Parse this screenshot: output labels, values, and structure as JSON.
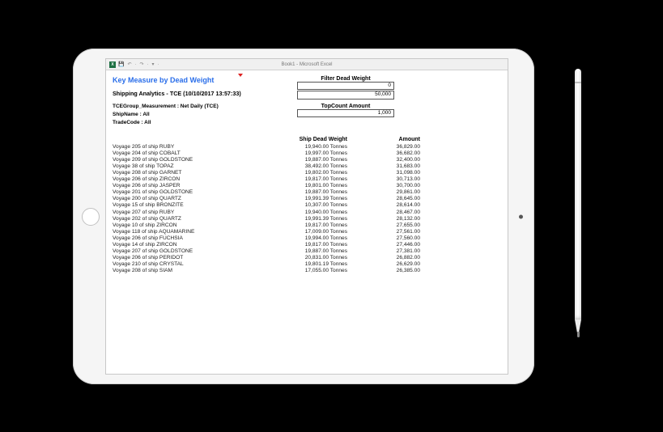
{
  "window": {
    "title": "Book1 - Microsoft Excel",
    "excel_glyph": "X"
  },
  "qat": {
    "save": "💾",
    "undo": "↶",
    "redo": "↷",
    "more": "▾"
  },
  "report": {
    "heading": "Key Measure by Dead Weight",
    "subtitle": "Shipping Analytics - TCE (10/10/2017 13:57:33)",
    "meta": {
      "measurement": "TCEGroup_Measurement : Net Daily (TCE)",
      "shipname": "ShipName : All",
      "tradecode": "TradeCode : All"
    }
  },
  "filters": {
    "dead_label": "Filter Dead Weight",
    "dead_min": "0",
    "dead_max": "50,000",
    "topcount_label": "TopCount Amount",
    "topcount_val": "1,000"
  },
  "columns": {
    "voyage": "",
    "dead": "Ship Dead Weight",
    "amount": "Amount"
  },
  "rows": [
    {
      "voyage": "Voyage 205 of ship RUBY",
      "dead": "19,940.00 Tonnes",
      "amount": "36,829.00"
    },
    {
      "voyage": "Voyage 204 of ship COBALT",
      "dead": "19,997.00 Tonnes",
      "amount": "36,682.00"
    },
    {
      "voyage": "Voyage 209 of ship GOLDSTONE",
      "dead": "19,887.00 Tonnes",
      "amount": "32,400.00"
    },
    {
      "voyage": "Voyage 38 of ship TOPAZ",
      "dead": "38,492.00 Tonnes",
      "amount": "31,683.00"
    },
    {
      "voyage": "Voyage 208 of ship GARNET",
      "dead": "19,802.00 Tonnes",
      "amount": "31,098.00"
    },
    {
      "voyage": "Voyage 206 of ship ZIRCON",
      "dead": "19,817.00 Tonnes",
      "amount": "30,713.00"
    },
    {
      "voyage": "Voyage 206 of ship JASPER",
      "dead": "19,801.00 Tonnes",
      "amount": "30,700.00"
    },
    {
      "voyage": "Voyage 201 of ship GOLDSTONE",
      "dead": "19,887.00 Tonnes",
      "amount": "29,861.00"
    },
    {
      "voyage": "Voyage 200 of ship QUARTZ",
      "dead": "19,991.39 Tonnes",
      "amount": "28,645.00"
    },
    {
      "voyage": "Voyage 15 of ship BRONZITE",
      "dead": "10,307.00 Tonnes",
      "amount": "28,614.00"
    },
    {
      "voyage": "Voyage 207 of ship RUBY",
      "dead": "19,940.00 Tonnes",
      "amount": "28,467.00"
    },
    {
      "voyage": "Voyage 202 of ship QUARTZ",
      "dead": "19,991.39 Tonnes",
      "amount": "28,132.00"
    },
    {
      "voyage": "Voyage 10 of ship ZIRCON",
      "dead": "19,817.00 Tonnes",
      "amount": "27,655.00"
    },
    {
      "voyage": "Voyage 118 of ship AQUAMARINE",
      "dead": "17,009.00 Tonnes",
      "amount": "27,561.00"
    },
    {
      "voyage": "Voyage 206 of ship FUCHSIA",
      "dead": "19,994.00 Tonnes",
      "amount": "27,560.00"
    },
    {
      "voyage": "Voyage 14 of ship ZIRCON",
      "dead": "19,817.00 Tonnes",
      "amount": "27,446.00"
    },
    {
      "voyage": "Voyage 207 of ship GOLDSTONE",
      "dead": "19,887.00 Tonnes",
      "amount": "27,381.00"
    },
    {
      "voyage": "Voyage 206 of ship PERIDOT",
      "dead": "20,831.00 Tonnes",
      "amount": "26,882.00"
    },
    {
      "voyage": "Voyage 210 of ship CRYSTAL",
      "dead": "19,801.19 Tonnes",
      "amount": "26,629.00"
    },
    {
      "voyage": "Voyage 208 of ship SIAM",
      "dead": "17,055.00 Tonnes",
      "amount": "26,385.00"
    }
  ],
  "colors": {
    "heading": "#2a6eea",
    "excel_green": "#1d6f42",
    "background": "#000000"
  }
}
